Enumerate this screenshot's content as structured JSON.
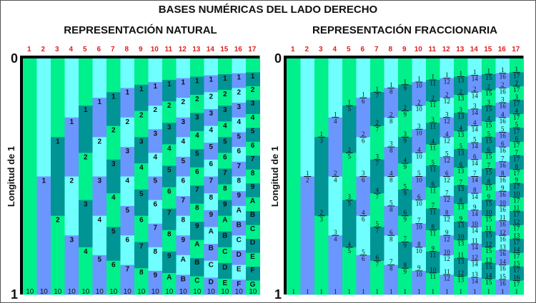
{
  "title": "BASES NUMÉRICAS DEL LADO DERECHO",
  "left_panel": {
    "subtitle": "REPRESENTACIÓN NATURAL",
    "y_axis_label": "Longitud de 1",
    "y_top": "0",
    "y_bottom": "1",
    "digits": "123456789ABCDEFG",
    "bottom_label": "10"
  },
  "right_panel": {
    "subtitle": "REPRESENTACIÓN FRACCIONARIA",
    "y_axis_label": "Longitud de 1",
    "y_top": "0",
    "y_bottom": "1",
    "bottom_label": "1"
  },
  "columns": [
    1,
    2,
    3,
    4,
    5,
    6,
    7,
    8,
    9,
    10,
    11,
    12,
    13,
    14,
    15,
    16,
    17
  ],
  "colors": {
    "odd_a": "#00f08c",
    "odd_b": "#009494",
    "even_a": "#70ffff",
    "even_b": "#6b96ff",
    "column_label": "#e02020",
    "axis": "#000000"
  }
}
